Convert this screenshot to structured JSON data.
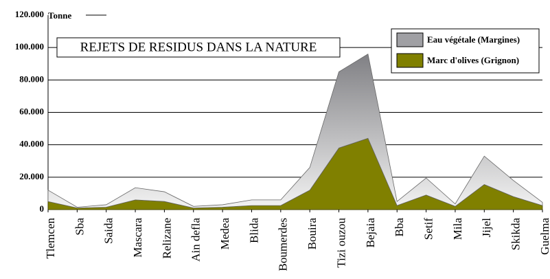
{
  "chart_data": {
    "type": "stacked_area",
    "title": "REJETS DE RESIDUS DANS LA NATURE",
    "y_label": "Tonne",
    "categories": [
      "Tlemcen",
      "Sba",
      "Saida",
      "Mascara",
      "Relizane",
      "Ain defla",
      "Medea",
      "Blida",
      "Boumerdes",
      "Bouira",
      "Tizi ouzou",
      "Bejaia",
      "Bba",
      "Setif",
      "Mila",
      "Jijel",
      "Skikda",
      "Guelma"
    ],
    "series": [
      {
        "name": "Marc d'olives (Grignon)",
        "color": "#808000",
        "values": [
          5000,
          1000,
          1500,
          6000,
          5000,
          1000,
          1500,
          2500,
          2500,
          12000,
          38000,
          44000,
          2500,
          9000,
          2000,
          15500,
          8000,
          2500
        ]
      },
      {
        "name": "Eau végétale (Margines)",
        "color": "#a0a0a4",
        "values": [
          7000,
          500,
          1500,
          7500,
          6000,
          1000,
          1500,
          3500,
          3500,
          14000,
          47000,
          52000,
          2500,
          10500,
          1500,
          17500,
          10000,
          2000
        ]
      }
    ],
    "ylim": [
      0,
      120000
    ],
    "yticks": [
      0,
      {
        "value": 20000,
        "label": "20.000"
      },
      {
        "value": 40000,
        "label": "40.000"
      },
      {
        "value": 60000,
        "label": "60.000"
      },
      {
        "value": 80000,
        "label": "80.000"
      },
      {
        "value": 100000,
        "label": "100.000"
      },
      {
        "value": 120000,
        "label": "120.000"
      }
    ],
    "grid": true
  }
}
